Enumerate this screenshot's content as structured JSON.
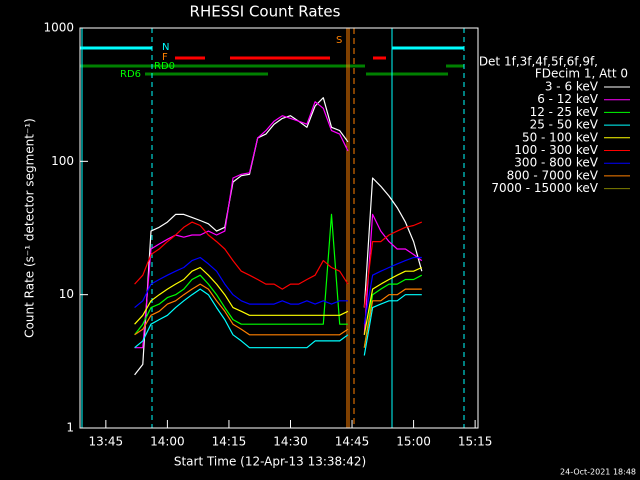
{
  "chart_data": {
    "type": "line",
    "title": "RHESSI Count Rates",
    "xlabel": "Start Time (12-Apr-13 13:38:42)",
    "ylabel": "Count Rate (s⁻¹ detector segment⁻¹)",
    "legend_header": [
      "Det 1f,3f,4f,5f,6f,9f,",
      "FDecim 1, Att 0"
    ],
    "footer": "24-Oct-2021 18:48",
    "annotations": [
      "N",
      "F",
      "RD0",
      "RD6",
      "S"
    ],
    "log_y": true,
    "xlim": [
      818.7,
      915.7
    ],
    "xticks": [
      {
        "value": 825,
        "label": "13:45"
      },
      {
        "value": 840,
        "label": "14:00"
      },
      {
        "value": 855,
        "label": "14:15"
      },
      {
        "value": 870,
        "label": "14:30"
      },
      {
        "value": 885,
        "label": "14:45"
      },
      {
        "value": 900,
        "label": "15:00"
      },
      {
        "value": 915,
        "label": "15:15"
      }
    ],
    "ylim": [
      1,
      1000
    ],
    "yticks": [
      1,
      10,
      100,
      1000
    ],
    "x": [
      832,
      834,
      836,
      838,
      840,
      842,
      844,
      846,
      848,
      850,
      852,
      854,
      856,
      858,
      860,
      862,
      864,
      866,
      868,
      870,
      872,
      874,
      876,
      878,
      880,
      882,
      884,
      886,
      888,
      890,
      892,
      894,
      896,
      898,
      900,
      902
    ],
    "series": [
      {
        "name": "3 - 6 keV",
        "color": "#ffffff",
        "values": [
          2.5,
          3,
          30,
          32,
          35,
          40,
          40,
          38,
          36,
          34,
          30,
          32,
          70,
          78,
          80,
          150,
          160,
          190,
          210,
          220,
          200,
          180,
          260,
          300,
          180,
          170,
          140,
          null,
          8,
          75,
          65,
          55,
          45,
          35,
          25,
          15
        ]
      },
      {
        "name": "6 - 12 keV",
        "color": "#ff00ff",
        "values": [
          4,
          4,
          22,
          24,
          26,
          28,
          27,
          28,
          28,
          30,
          28,
          30,
          75,
          80,
          82,
          150,
          170,
          200,
          220,
          210,
          200,
          190,
          280,
          250,
          170,
          160,
          120,
          null,
          5,
          40,
          30,
          25,
          22,
          22,
          20,
          18
        ]
      },
      {
        "name": "12 - 25 keV",
        "color": "#00ff00",
        "values": [
          5,
          6,
          8,
          8.5,
          9.5,
          10,
          11,
          13,
          14,
          12,
          10,
          8,
          6.5,
          6,
          6,
          6,
          6,
          6,
          6,
          6,
          6,
          6,
          6,
          6,
          40,
          6,
          6,
          null,
          4,
          10,
          11,
          12,
          12,
          13,
          13,
          14
        ]
      },
      {
        "name": "25 - 50 keV",
        "color": "#00ffff",
        "values": [
          4,
          4.5,
          6,
          6.5,
          7,
          8,
          9,
          10,
          11,
          10,
          8,
          6.5,
          5,
          4.5,
          4,
          4,
          4,
          4,
          4,
          4,
          4,
          4,
          4.5,
          4.5,
          4.5,
          4.5,
          5,
          null,
          3.5,
          8,
          8.5,
          9,
          9,
          10,
          10,
          10
        ]
      },
      {
        "name": "50 - 100 keV",
        "color": "#ffff00",
        "values": [
          6,
          7,
          9,
          10,
          11,
          12,
          13,
          15,
          16,
          14,
          12,
          10,
          8,
          7.5,
          7,
          7,
          7,
          7,
          7,
          7,
          7,
          7,
          7,
          7,
          7,
          7,
          7.5,
          null,
          5,
          11,
          12,
          13,
          14,
          15,
          15,
          16
        ]
      },
      {
        "name": "100 - 300 keV",
        "color": "#ff0000",
        "values": [
          12,
          14,
          20,
          22,
          25,
          28,
          32,
          35,
          33,
          28,
          25,
          22,
          18,
          15,
          14,
          13,
          12,
          12,
          11,
          12,
          12,
          13,
          14,
          18,
          16,
          15,
          12,
          null,
          8,
          25,
          25,
          28,
          30,
          32,
          33,
          35
        ]
      },
      {
        "name": "300 - 800 keV",
        "color": "#0000ff",
        "values": [
          8,
          9,
          12,
          13,
          14,
          15,
          16,
          18,
          19,
          17,
          15,
          12,
          10,
          9,
          8.5,
          8.5,
          8.5,
          8.5,
          9,
          8.5,
          8.5,
          9,
          8.5,
          9,
          8.5,
          9,
          9,
          null,
          6,
          14,
          15,
          16,
          17,
          18,
          19,
          19
        ]
      },
      {
        "name": "800 - 7000 keV",
        "color": "#ff8000",
        "values": [
          5,
          5.5,
          7,
          7.5,
          8.5,
          9,
          10,
          11,
          12,
          11,
          9,
          7.5,
          6,
          5.5,
          5,
          5,
          5,
          5,
          5,
          5,
          5,
          5,
          5,
          5,
          5,
          5,
          5.5,
          null,
          4,
          9,
          9,
          10,
          10,
          11,
          11,
          11
        ]
      },
      {
        "name": "7000 - 15000 keV",
        "color": "#808000",
        "values": [
          null,
          null,
          null,
          null,
          null,
          null,
          null,
          null,
          null,
          null,
          null,
          null,
          null,
          null,
          null,
          null,
          null,
          null,
          null,
          null,
          null,
          null,
          null,
          null,
          null,
          null,
          null,
          null,
          null,
          null,
          null,
          null,
          null,
          null,
          null,
          null
        ]
      }
    ]
  }
}
